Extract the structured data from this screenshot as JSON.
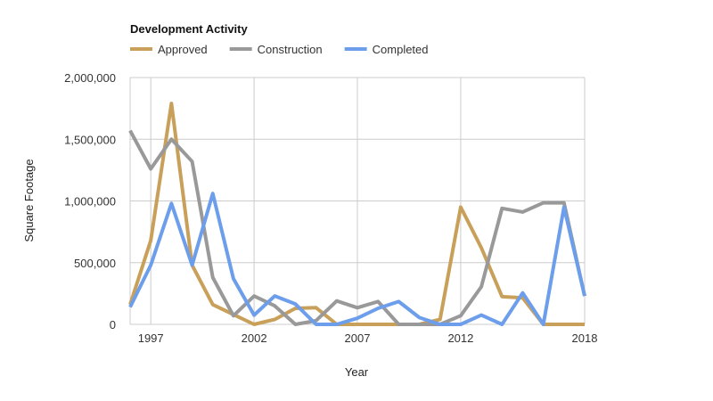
{
  "chart_data": {
    "type": "line",
    "title": "Development Activity",
    "xlabel": "Year",
    "ylabel": "Square Footage",
    "x": [
      1996,
      1997,
      1998,
      1999,
      2000,
      2001,
      2002,
      2003,
      2004,
      2005,
      2006,
      2007,
      2008,
      2009,
      2010,
      2011,
      2012,
      2013,
      2014,
      2015,
      2016,
      2017,
      2018
    ],
    "xlim": [
      1996,
      2018
    ],
    "ylim": [
      0,
      2000000
    ],
    "x_ticks": [
      1997,
      2002,
      2007,
      2012,
      2018
    ],
    "y_ticks": [
      0,
      500000,
      1000000,
      1500000,
      2000000
    ],
    "x_tick_labels": [
      "1997",
      "2002",
      "2007",
      "2012",
      "2018"
    ],
    "y_tick_labels": [
      "0",
      "500,000",
      "1,000,000",
      "1,500,000",
      "2,000,000"
    ],
    "grid": true,
    "legend_position": "top-left",
    "series": [
      {
        "name": "Approved",
        "color": "#c9a05a",
        "values": [
          160000,
          680000,
          1790000,
          480000,
          160000,
          80000,
          0,
          40000,
          130000,
          135000,
          0,
          0,
          0,
          0,
          0,
          40000,
          950000,
          620000,
          225000,
          215000,
          0,
          0,
          0
        ]
      },
      {
        "name": "Construction",
        "color": "#999999",
        "values": [
          1570000,
          1260000,
          1500000,
          1320000,
          380000,
          70000,
          230000,
          150000,
          0,
          30000,
          190000,
          135000,
          185000,
          0,
          0,
          0,
          70000,
          305000,
          940000,
          910000,
          985000,
          985000,
          230000
        ]
      },
      {
        "name": "Completed",
        "color": "#6d9eeb",
        "values": [
          140000,
          480000,
          980000,
          480000,
          1060000,
          370000,
          75000,
          230000,
          165000,
          0,
          0,
          50000,
          130000,
          185000,
          55000,
          0,
          0,
          75000,
          0,
          255000,
          0,
          950000,
          230000
        ]
      }
    ]
  }
}
